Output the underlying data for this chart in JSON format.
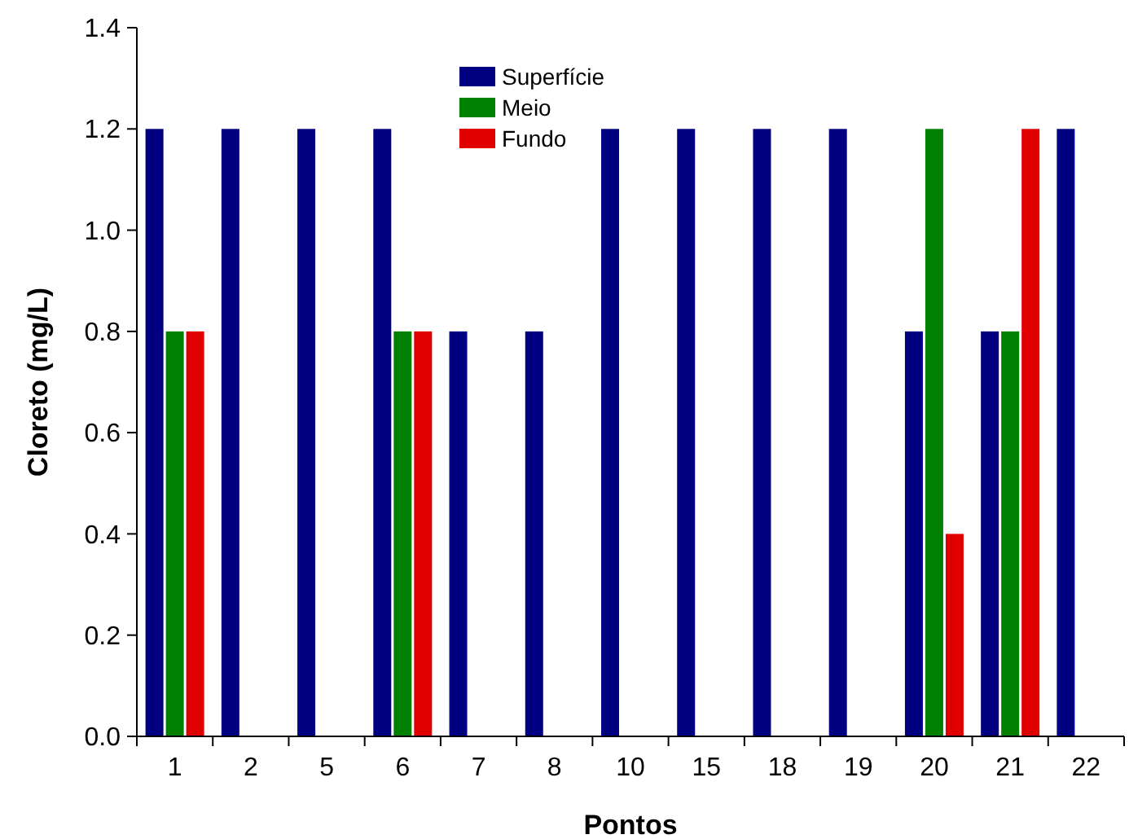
{
  "chart_data": {
    "type": "bar",
    "xlabel": "Pontos",
    "ylabel": "Cloreto (mg/L)",
    "categories": [
      "1",
      "2",
      "5",
      "6",
      "7",
      "8",
      "10",
      "15",
      "18",
      "19",
      "20",
      "21",
      "22"
    ],
    "series": [
      {
        "name": "Superfície",
        "color": "#000080",
        "values": [
          1.2,
          1.2,
          1.2,
          1.2,
          0.8,
          0.8,
          1.2,
          1.2,
          1.2,
          1.2,
          0.8,
          0.8,
          1.2
        ]
      },
      {
        "name": "Meio",
        "color": "#008000",
        "values": [
          0.8,
          null,
          null,
          0.8,
          null,
          null,
          null,
          null,
          null,
          null,
          1.2,
          0.8,
          null
        ]
      },
      {
        "name": "Fundo",
        "color": "#e00000",
        "values": [
          0.8,
          null,
          null,
          0.8,
          null,
          null,
          null,
          null,
          null,
          null,
          0.4,
          1.2,
          null
        ]
      }
    ],
    "ylim": [
      0,
      1.4
    ],
    "yticks": [
      {
        "value": 0,
        "label": "0.0"
      },
      {
        "value": 0.2,
        "label": "0.2"
      },
      {
        "value": 0.4,
        "label": "0.4"
      },
      {
        "value": 0.6,
        "label": "0.6"
      },
      {
        "value": 0.8,
        "label": "0.8"
      },
      {
        "value": 1,
        "label": "1.0"
      },
      {
        "value": 1.2,
        "label": "1.2"
      },
      {
        "value": 1.4,
        "label": "1.4"
      }
    ],
    "grid": false,
    "legend": "top"
  }
}
